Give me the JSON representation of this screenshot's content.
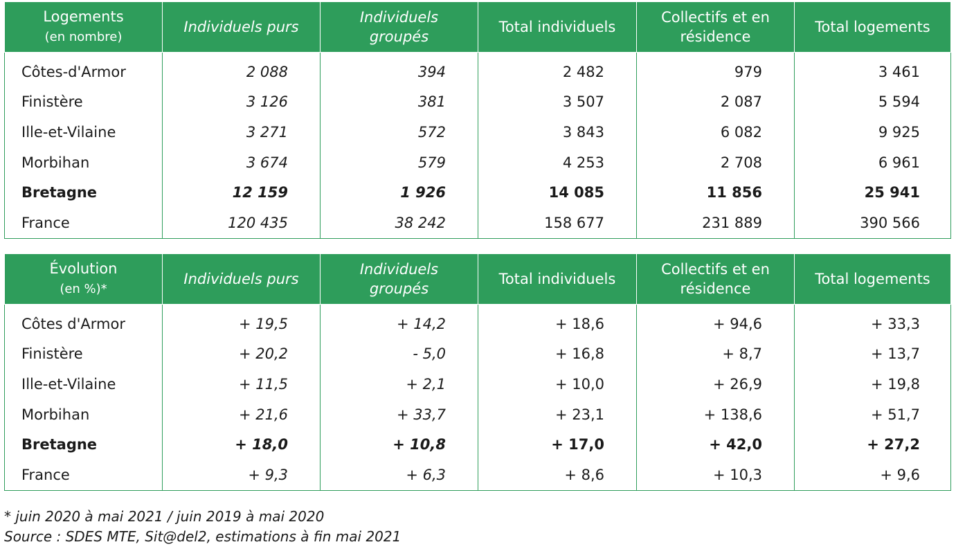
{
  "colors": {
    "header_bg": "#2e9d5b",
    "header_text": "#ffffff",
    "border": "#2e9d5b"
  },
  "table1": {
    "headers": [
      {
        "main": "Logements",
        "sub": "(en nombre)"
      },
      {
        "main": "Individuels purs"
      },
      {
        "main": "Individuels groupés"
      },
      {
        "main": "Total individuels"
      },
      {
        "main": "Collectifs et en résidence"
      },
      {
        "main": "Total logements"
      }
    ],
    "rows": [
      [
        "Côtes-d'Armor",
        "2 088",
        "394",
        "2 482",
        "979",
        "3 461"
      ],
      [
        "Finistère",
        "3 126",
        "381",
        "3 507",
        "2 087",
        "5 594"
      ],
      [
        "Ille-et-Vilaine",
        "3 271",
        "572",
        "3 843",
        "6 082",
        "9 925"
      ],
      [
        "Morbihan",
        "3 674",
        "579",
        "4 253",
        "2 708",
        "6 961"
      ],
      [
        "Bretagne",
        "12 159",
        "1 926",
        "14 085",
        "11 856",
        "25 941"
      ],
      [
        "France",
        "120 435",
        "38 242",
        "158 677",
        "231 889",
        "390 566"
      ]
    ]
  },
  "table2": {
    "headers": [
      {
        "main": "Évolution",
        "sub": "(en %)*"
      },
      {
        "main": "Individuels purs"
      },
      {
        "main": "Individuels groupés"
      },
      {
        "main": "Total individuels"
      },
      {
        "main": "Collectifs et en résidence"
      },
      {
        "main": "Total logements"
      }
    ],
    "rows": [
      [
        "Côtes d'Armor",
        "+ 19,5",
        "+ 14,2",
        "+ 18,6",
        "+ 94,6",
        "+ 33,3"
      ],
      [
        "Finistère",
        "+ 20,2",
        "- 5,0",
        "+ 16,8",
        "+ 8,7",
        "+ 13,7"
      ],
      [
        "Ille-et-Vilaine",
        "+ 11,5",
        "+ 2,1",
        "+ 10,0",
        "+ 26,9",
        "+ 19,8"
      ],
      [
        "Morbihan",
        "+ 21,6",
        "+ 33,7",
        "+ 23,1",
        "+ 138,6",
        "+ 51,7"
      ],
      [
        "Bretagne",
        "+ 18,0",
        "+ 10,8",
        "+ 17,0",
        "+ 42,0",
        "+ 27,2"
      ],
      [
        "France",
        "+ 9,3",
        "+ 6,3",
        "+ 8,6",
        "+ 10,3",
        "+ 9,6"
      ]
    ]
  },
  "notes": {
    "footnote": "* juin 2020 à mai 2021 / juin 2019 à mai 2020",
    "source": "Source : SDES MTE, Sit@del2, estimations à fin mai 2021"
  }
}
